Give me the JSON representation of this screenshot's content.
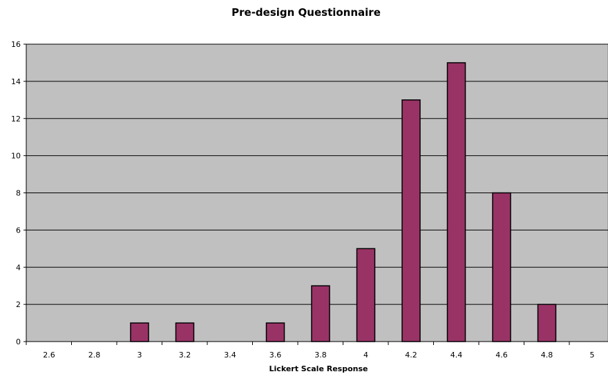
{
  "chart_data": {
    "type": "bar",
    "title": "Pre-design Questionnaire",
    "xlabel": "Lickert Scale Response",
    "ylabel": "",
    "categories": [
      "2.6",
      "2.8",
      "3",
      "3.2",
      "3.4",
      "3.6",
      "3.8",
      "4",
      "4.2",
      "4.4",
      "4.6",
      "4.8",
      "5"
    ],
    "values": [
      0,
      0,
      1,
      1,
      0,
      1,
      3,
      5,
      13,
      15,
      8,
      2,
      0
    ],
    "ylim": [
      0,
      16
    ],
    "yticks": [
      "0",
      "2",
      "4",
      "6",
      "8",
      "10",
      "12",
      "14",
      "16"
    ],
    "grid": true,
    "legend": "none",
    "colors": {
      "bar": "#993366",
      "plot_background": "#c0c0c0",
      "gridline": "#000000"
    }
  }
}
